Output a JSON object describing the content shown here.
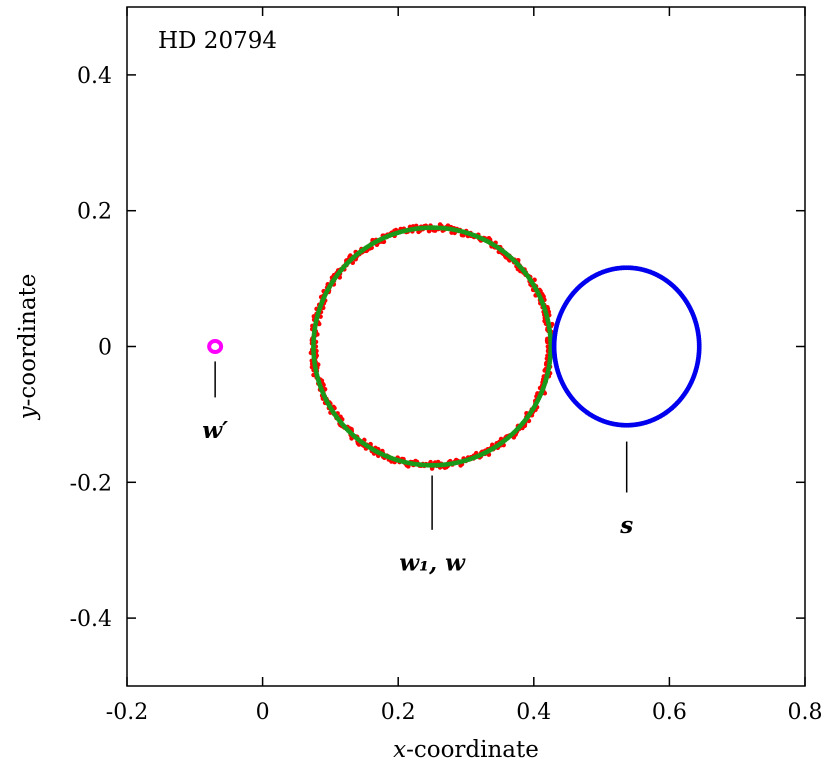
{
  "chart_data": {
    "type": "scatter",
    "title": "HD 20794",
    "xlabel": {
      "var": "x",
      "rest": "-coordinate"
    },
    "ylabel": {
      "var": "y",
      "rest": "-coordinate"
    },
    "xlim": [
      -0.2,
      0.8
    ],
    "ylim": [
      -0.5,
      0.5
    ],
    "x_ticks": [
      "-0.2",
      "0",
      "0.2",
      "0.4",
      "0.6",
      "0.8"
    ],
    "y_ticks": [
      "-0.4",
      "-0.2",
      "0",
      "0.2",
      "0.4"
    ],
    "x_tick_values": [
      -0.2,
      0,
      0.2,
      0.4,
      0.6,
      0.8
    ],
    "y_tick_values": [
      -0.4,
      -0.2,
      0,
      0.2,
      0.4
    ],
    "grid": false,
    "series": [
      {
        "kind": "noisy-ring",
        "center": [
          0.25,
          0.0
        ],
        "radius": 0.175,
        "color": "#ff0000"
      },
      {
        "kind": "ring",
        "center": [
          0.25,
          0.0
        ],
        "radius": 0.175,
        "color": "#1a9a1a"
      },
      {
        "kind": "ring",
        "center": [
          0.537,
          0.0
        ],
        "radius_x": 0.107,
        "radius_y": 0.116,
        "color": "#0000ee"
      },
      {
        "kind": "ring",
        "center": [
          -0.07,
          0.0
        ],
        "radius": 0.008,
        "color": "#ff00ff"
      }
    ],
    "annotations": [
      {
        "text": "w′",
        "line_x": -0.07,
        "line_y": [
          -0.022,
          -0.075
        ],
        "text_at": [
          -0.07,
          -0.135
        ]
      },
      {
        "text": "w₁, w",
        "line_x": 0.25,
        "line_y": [
          -0.19,
          -0.27
        ],
        "text_at": [
          0.25,
          -0.33
        ]
      },
      {
        "text": "s",
        "line_x": 0.537,
        "line_y": [
          -0.14,
          -0.215
        ],
        "text_at": [
          0.537,
          -0.275
        ]
      }
    ]
  }
}
